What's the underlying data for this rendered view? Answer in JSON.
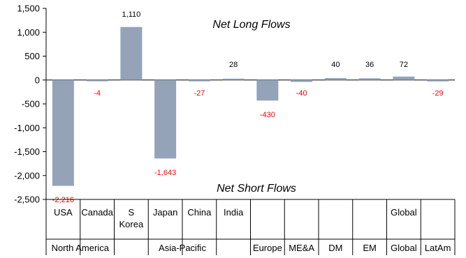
{
  "chart_data": {
    "type": "bar",
    "title": "",
    "xlabel": "",
    "ylabel": "",
    "ylim": [
      -2500,
      1500
    ],
    "yticks": [
      1500,
      1000,
      500,
      0,
      -500,
      -1000,
      -1500,
      -2000,
      -2500
    ],
    "ytick_labels": [
      "1,500",
      "1,000",
      "500",
      "0",
      "-500",
      "-1,000",
      "-1,500",
      "-2,000",
      "-2,500"
    ],
    "grid": false,
    "categories": [
      "USA",
      "Canada",
      "S Korea",
      "Japan",
      "China",
      "India",
      "",
      "",
      "DM",
      "EM",
      "Global",
      ""
    ],
    "category_lines": [
      [
        "USA"
      ],
      [
        "Canada"
      ],
      [
        "S",
        "Korea"
      ],
      [
        "Japan"
      ],
      [
        "China"
      ],
      [
        "India"
      ],
      [],
      [],
      [],
      [],
      [
        "Global"
      ],
      []
    ],
    "values": [
      -2216,
      -4,
      1110,
      -1643,
      -27,
      28,
      -430,
      -40,
      40,
      36,
      72,
      -29
    ],
    "value_labels": [
      "-2,216",
      "-4",
      "1,110",
      "-1,643",
      "-27",
      "28",
      "-430",
      "-40",
      "40",
      "36",
      "72",
      "-29"
    ],
    "groups": [
      {
        "label": "North America",
        "start": 0,
        "end": 1
      },
      {
        "label": "Asia-Pacific",
        "start": 2,
        "end": 5
      },
      {
        "label": "Europe",
        "start": 6,
        "end": 6
      },
      {
        "label": "ME&A",
        "start": 7,
        "end": 7
      },
      {
        "label": "DM",
        "start": 8,
        "end": 8
      },
      {
        "label": "EM",
        "start": 9,
        "end": 9
      },
      {
        "label": "Global",
        "start": 10,
        "end": 10
      },
      {
        "label": "LatAm",
        "start": 11,
        "end": 11
      }
    ],
    "annotations": {
      "top": "Net Long Flows",
      "bottom": "Net Short Flows"
    },
    "colors": {
      "bar": "#95a3b9",
      "positive_label": "#000000",
      "negative_label": "#ff0000",
      "axis": "#000000"
    }
  }
}
